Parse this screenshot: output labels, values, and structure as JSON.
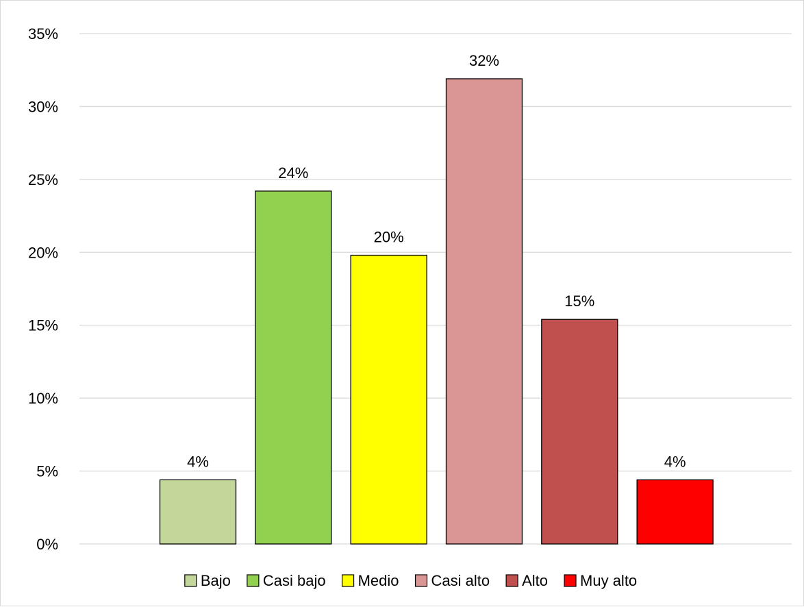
{
  "chart_data": {
    "type": "bar",
    "categories": [
      "Bajo",
      "Casi bajo",
      "Medio",
      "Casi alto",
      "Alto",
      "Muy alto"
    ],
    "values": [
      4.4,
      24.2,
      19.8,
      31.9,
      15.4,
      4.4
    ],
    "data_labels": [
      "4%",
      "24%",
      "20%",
      "32%",
      "15%",
      "4%"
    ],
    "colors": [
      "#c4d79b",
      "#92d050",
      "#ffff00",
      "#da9694",
      "#c0504d",
      "#ff0000"
    ],
    "ylim": [
      0,
      35
    ],
    "yticks": [
      0,
      5,
      10,
      15,
      20,
      25,
      30,
      35
    ],
    "ytick_labels": [
      "0%",
      "5%",
      "10%",
      "15%",
      "20%",
      "25%",
      "30%",
      "35%"
    ],
    "grid": true,
    "legend_position": "bottom",
    "title": "",
    "xlabel": "",
    "ylabel": ""
  }
}
